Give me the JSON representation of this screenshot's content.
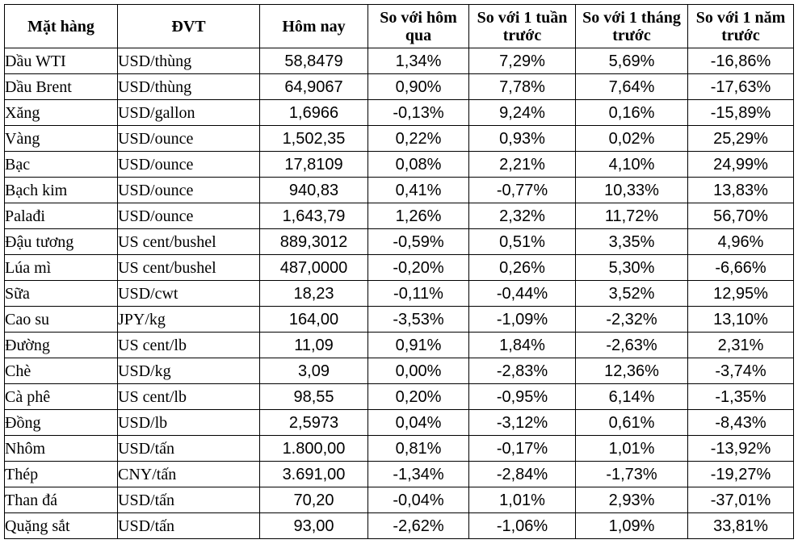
{
  "table": {
    "headers": {
      "name": "Mặt hàng",
      "unit": "ĐVT",
      "today": "Hôm nay",
      "vs_day": "So với hôm qua",
      "vs_week": "So với 1 tuần trước",
      "vs_month": "So với 1 tháng trước",
      "vs_year": "So với 1 năm trước"
    },
    "rows": [
      {
        "name": "Dầu WTI",
        "unit": "USD/thùng",
        "today": "58,8479",
        "vs_day": "1,34%",
        "vs_week": "7,29%",
        "vs_month": "5,69%",
        "vs_year": "-16,86%"
      },
      {
        "name": "Dầu Brent",
        "unit": "USD/thùng",
        "today": "64,9067",
        "vs_day": "0,90%",
        "vs_week": "7,78%",
        "vs_month": "7,64%",
        "vs_year": "-17,63%"
      },
      {
        "name": "Xăng",
        "unit": "USD/gallon",
        "today": "1,6966",
        "vs_day": "-0,13%",
        "vs_week": "9,24%",
        "vs_month": "0,16%",
        "vs_year": "-15,89%"
      },
      {
        "name": "Vàng",
        "unit": "USD/ounce",
        "today": "1,502,35",
        "vs_day": "0,22%",
        "vs_week": "0,93%",
        "vs_month": "0,02%",
        "vs_year": "25,29%"
      },
      {
        "name": "Bạc",
        "unit": "USD/ounce",
        "today": "17,8109",
        "vs_day": "0,08%",
        "vs_week": "2,21%",
        "vs_month": "4,10%",
        "vs_year": "24,99%"
      },
      {
        "name": "Bạch kim",
        "unit": "USD/ounce",
        "today": "940,83",
        "vs_day": "0,41%",
        "vs_week": "-0,77%",
        "vs_month": "10,33%",
        "vs_year": "13,83%"
      },
      {
        "name": "Palađi",
        "unit": "USD/ounce",
        "today": "1,643,79",
        "vs_day": "1,26%",
        "vs_week": "2,32%",
        "vs_month": "11,72%",
        "vs_year": "56,70%"
      },
      {
        "name": "Đậu tương",
        "unit": "US cent/bushel",
        "today": "889,3012",
        "vs_day": "-0,59%",
        "vs_week": "0,51%",
        "vs_month": "3,35%",
        "vs_year": "4,96%"
      },
      {
        "name": "Lúa mì",
        "unit": "US cent/bushel",
        "today": "487,0000",
        "vs_day": "-0,20%",
        "vs_week": "0,26%",
        "vs_month": "5,30%",
        "vs_year": "-6,66%"
      },
      {
        "name": "Sữa",
        "unit": "USD/cwt",
        "today": "18,23",
        "vs_day": "-0,11%",
        "vs_week": "-0,44%",
        "vs_month": "3,52%",
        "vs_year": "12,95%"
      },
      {
        "name": "Cao su",
        "unit": "JPY/kg",
        "today": "164,00",
        "vs_day": "-3,53%",
        "vs_week": "-1,09%",
        "vs_month": "-2,32%",
        "vs_year": "13,10%"
      },
      {
        "name": "Đường",
        "unit": "US cent/lb",
        "today": "11,09",
        "vs_day": "0,91%",
        "vs_week": "1,84%",
        "vs_month": "-2,63%",
        "vs_year": "2,31%"
      },
      {
        "name": "Chè",
        "unit": "USD/kg",
        "today": "3,09",
        "vs_day": "0,00%",
        "vs_week": "-2,83%",
        "vs_month": "12,36%",
        "vs_year": "-3,74%"
      },
      {
        "name": "Cà phê",
        "unit": "US cent/lb",
        "today": "98,55",
        "vs_day": "0,20%",
        "vs_week": "-0,95%",
        "vs_month": "6,14%",
        "vs_year": "-1,35%"
      },
      {
        "name": "Đồng",
        "unit": "USD/lb",
        "today": "2,5973",
        "vs_day": "0,04%",
        "vs_week": "-3,12%",
        "vs_month": "0,61%",
        "vs_year": "-8,43%"
      },
      {
        "name": "Nhôm",
        "unit": "USD/tấn",
        "today": "1.800,00",
        "vs_day": "0,81%",
        "vs_week": "-0,17%",
        "vs_month": "1,01%",
        "vs_year": "-13,92%"
      },
      {
        "name": "Thép",
        "unit": "CNY/tấn",
        "today": "3.691,00",
        "vs_day": "-1,34%",
        "vs_week": "-2,84%",
        "vs_month": "-1,73%",
        "vs_year": "-19,27%"
      },
      {
        "name": "Than đá",
        "unit": "USD/tấn",
        "today": "70,20",
        "vs_day": "-0,04%",
        "vs_week": "1,01%",
        "vs_month": "2,93%",
        "vs_year": "-37,01%"
      },
      {
        "name": "Quặng sắt",
        "unit": "USD/tấn",
        "today": "93,00",
        "vs_day": "-2,62%",
        "vs_week": "-1,06%",
        "vs_month": "1,09%",
        "vs_year": "33,81%"
      }
    ]
  }
}
